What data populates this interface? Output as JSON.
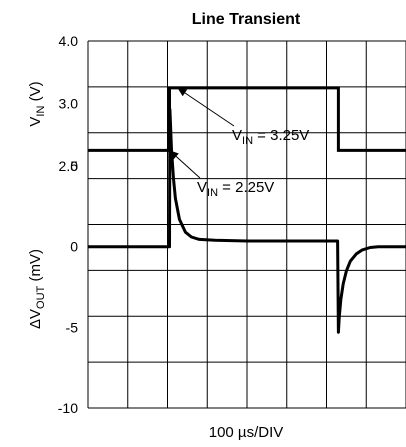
{
  "chart_data": {
    "type": "line",
    "title": "Line Transient",
    "xlabel": "100 µs/DIV",
    "x_divisions": 8,
    "top_panel": {
      "ylabel": {
        "main": "V",
        "sub": "IN",
        "unit": " (V)"
      },
      "ylim": [
        2.0,
        4.0
      ],
      "y_ticks": [
        "4.0",
        "3.0",
        "2.0"
      ],
      "y_tick_values": [
        4.0,
        3.0,
        2.0
      ],
      "series": [
        {
          "x_div": [
            0,
            2.05,
            2.05,
            6.3,
            6.3,
            8
          ],
          "y": [
            2.25,
            2.25,
            3.25,
            3.25,
            2.25,
            2.25
          ]
        }
      ],
      "annotations": [
        {
          "main": "V",
          "sub": "IN",
          "rest": " = 3.25V",
          "target_x_div": 2.25,
          "target_y": 3.25
        },
        {
          "main": "V",
          "sub": "IN",
          "rest": " = 2.25V",
          "target_x_div": 2.05,
          "target_y": 2.25
        }
      ]
    },
    "bottom_panel": {
      "ylabel": {
        "prefix": "ΔV",
        "sub": "OUT",
        "unit": " (mV)"
      },
      "ylim": [
        -10,
        5
      ],
      "y_ticks": [
        "5",
        "0",
        "-5",
        "-10"
      ],
      "y_tick_values": [
        5,
        0,
        -5,
        -10
      ],
      "series": [
        {
          "x_div": [
            0,
            2.05,
            2.06,
            2.1,
            2.15,
            2.2,
            2.3,
            2.45,
            2.6,
            2.8,
            3.2,
            4.0,
            5.0,
            6.28,
            6.3,
            6.32,
            6.36,
            6.42,
            6.5,
            6.6,
            6.75,
            6.9,
            7.1,
            7.3,
            8.0
          ],
          "y": [
            0,
            0,
            8.5,
            6.0,
            4.2,
            3.0,
            1.7,
            0.9,
            0.6,
            0.45,
            0.4,
            0.35,
            0.35,
            0.35,
            -5.3,
            -4.4,
            -3.3,
            -2.3,
            -1.5,
            -0.9,
            -0.45,
            -0.2,
            -0.05,
            0,
            0
          ]
        }
      ]
    },
    "grid": true
  }
}
